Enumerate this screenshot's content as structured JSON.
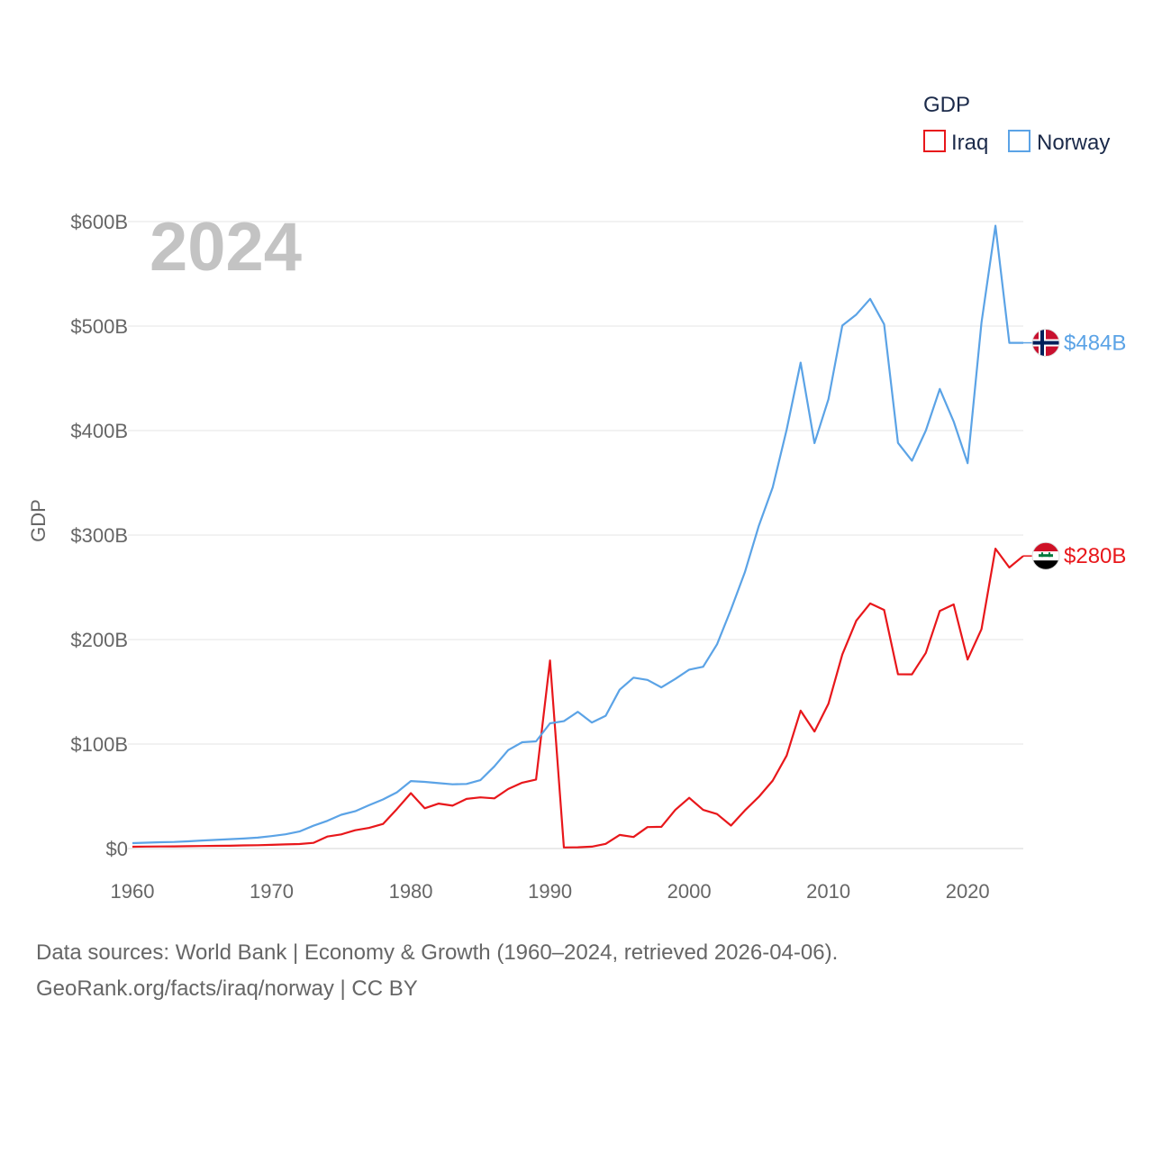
{
  "chart_data": {
    "type": "line",
    "year_label": "2024",
    "ylabel": "GDP",
    "xlabel": "",
    "ylim": [
      0,
      600
    ],
    "xlim": [
      1960,
      2024
    ],
    "y_ticks": [
      {
        "value": 0,
        "label": "$0"
      },
      {
        "value": 100,
        "label": "$100B"
      },
      {
        "value": 200,
        "label": "$200B"
      },
      {
        "value": 300,
        "label": "$300B"
      },
      {
        "value": 400,
        "label": "$400B"
      },
      {
        "value": 500,
        "label": "$500B"
      },
      {
        "value": 600,
        "label": "$600B"
      }
    ],
    "x_ticks": [
      {
        "value": 1960,
        "label": "1960"
      },
      {
        "value": 1970,
        "label": "1970"
      },
      {
        "value": 1980,
        "label": "1980"
      },
      {
        "value": 1990,
        "label": "1990"
      },
      {
        "value": 2000,
        "label": "2000"
      },
      {
        "value": 2010,
        "label": "2010"
      },
      {
        "value": 2020,
        "label": "2020"
      }
    ],
    "legend": {
      "title": "GDP",
      "position": "top-right"
    },
    "x": [
      1960,
      1961,
      1962,
      1963,
      1964,
      1965,
      1966,
      1967,
      1968,
      1969,
      1970,
      1971,
      1972,
      1973,
      1974,
      1975,
      1976,
      1977,
      1978,
      1979,
      1980,
      1981,
      1982,
      1983,
      1984,
      1985,
      1986,
      1987,
      1988,
      1989,
      1990,
      1991,
      1992,
      1993,
      1994,
      1995,
      1996,
      1997,
      1998,
      1999,
      2000,
      2001,
      2002,
      2003,
      2004,
      2005,
      2006,
      2007,
      2008,
      2009,
      2010,
      2011,
      2012,
      2013,
      2014,
      2015,
      2016,
      2017,
      2018,
      2019,
      2020,
      2021,
      2022,
      2023,
      2024
    ],
    "series": [
      {
        "name": "Iraq",
        "color": "#e8171b",
        "end_label": "$280B",
        "values": [
          1.7,
          1.9,
          2.0,
          2.1,
          2.2,
          2.4,
          2.6,
          2.7,
          3.0,
          3.2,
          3.5,
          4.0,
          4.3,
          5.4,
          11.5,
          13.5,
          17.5,
          19.7,
          23.5,
          37.8,
          53.0,
          38.5,
          43.0,
          41.0,
          47.5,
          49.0,
          48.0,
          57.0,
          63.0,
          66.0,
          180.0,
          1.0,
          1.2,
          1.8,
          4.5,
          13.0,
          11.0,
          20.5,
          20.8,
          37.0,
          48.5,
          37.0,
          33.0,
          22.0,
          36.5,
          49.5,
          65.0,
          89.0,
          132.0,
          112.0,
          138.5,
          185.7,
          218.0,
          234.6,
          228.4,
          166.8,
          166.7,
          187.2,
          227.4,
          233.6,
          180.9,
          210.0,
          287.0,
          269.0,
          280.0
        ]
      },
      {
        "name": "Norway",
        "color": "#5ba3e6",
        "end_label": "$484B",
        "values": [
          5.2,
          5.6,
          6.0,
          6.3,
          6.9,
          7.7,
          8.3,
          9.0,
          9.6,
          10.4,
          11.9,
          13.6,
          16.3,
          21.8,
          26.5,
          32.3,
          35.7,
          41.5,
          47.0,
          53.8,
          64.6,
          63.8,
          62.6,
          61.5,
          61.8,
          65.4,
          78.6,
          94.2,
          101.7,
          102.6,
          119.8,
          121.9,
          130.9,
          120.6,
          127.1,
          152.0,
          163.5,
          161.4,
          154.2,
          162.3,
          171.2,
          174.0,
          195.4,
          228.8,
          264.4,
          308.9,
          345.6,
          400.9,
          465.0,
          388.0,
          430.0,
          500.5,
          511.0,
          526.0,
          501.7,
          388.2,
          371.1,
          400.0,
          439.8,
          408.7,
          368.8,
          503.4,
          596.0,
          484.0,
          484.0
        ]
      }
    ]
  },
  "flag_icons": {
    "Iraq": "iraq-flag-icon",
    "Norway": "norway-flag-icon"
  },
  "source": {
    "line1": "Data sources: World Bank | Economy & Growth (1960–2024, retrieved 2026-04-06).",
    "line2": "GeoRank.org/facts/iraq/norway | CC BY"
  }
}
